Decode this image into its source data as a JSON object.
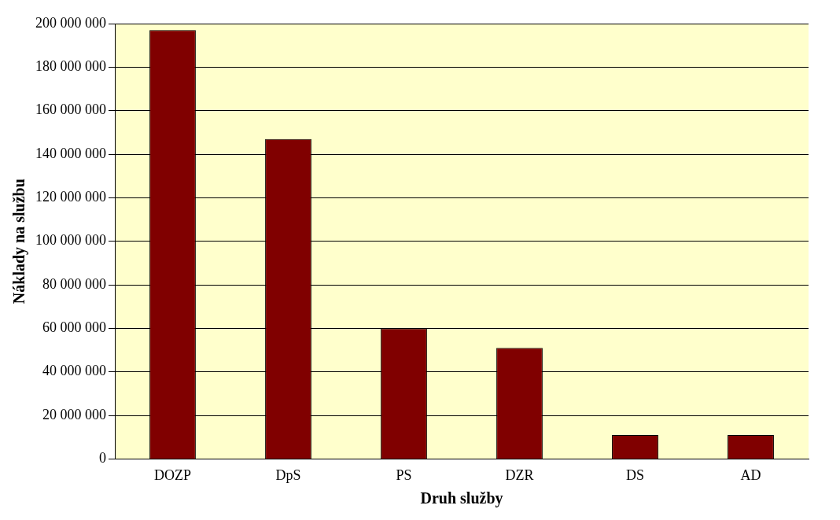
{
  "chart_data": {
    "type": "bar",
    "xlabel": "Druh služby",
    "ylabel": "Náklady na službu",
    "categories": [
      "DOZP",
      "DpS",
      "PS",
      "DZR",
      "DS",
      "AD"
    ],
    "values": [
      197000000,
      147000000,
      60000000,
      51000000,
      11000000,
      11000000
    ],
    "color": "#800000",
    "ylim": [
      0,
      200000000
    ],
    "yticks": [
      {
        "value": 0,
        "label": "0"
      },
      {
        "value": 20000000,
        "label": "20 000 000"
      },
      {
        "value": 40000000,
        "label": "40 000 000"
      },
      {
        "value": 60000000,
        "label": "60 000 000"
      },
      {
        "value": 80000000,
        "label": "80 000 000"
      },
      {
        "value": 100000000,
        "label": "100 000 000"
      },
      {
        "value": 120000000,
        "label": "120 000 000"
      },
      {
        "value": 140000000,
        "label": "140 000 000"
      },
      {
        "value": 160000000,
        "label": "160 000 000"
      },
      {
        "value": 180000000,
        "label": "180 000 000"
      },
      {
        "value": 200000000,
        "label": "200 000 000"
      }
    ],
    "grid": "y",
    "legend": false
  }
}
